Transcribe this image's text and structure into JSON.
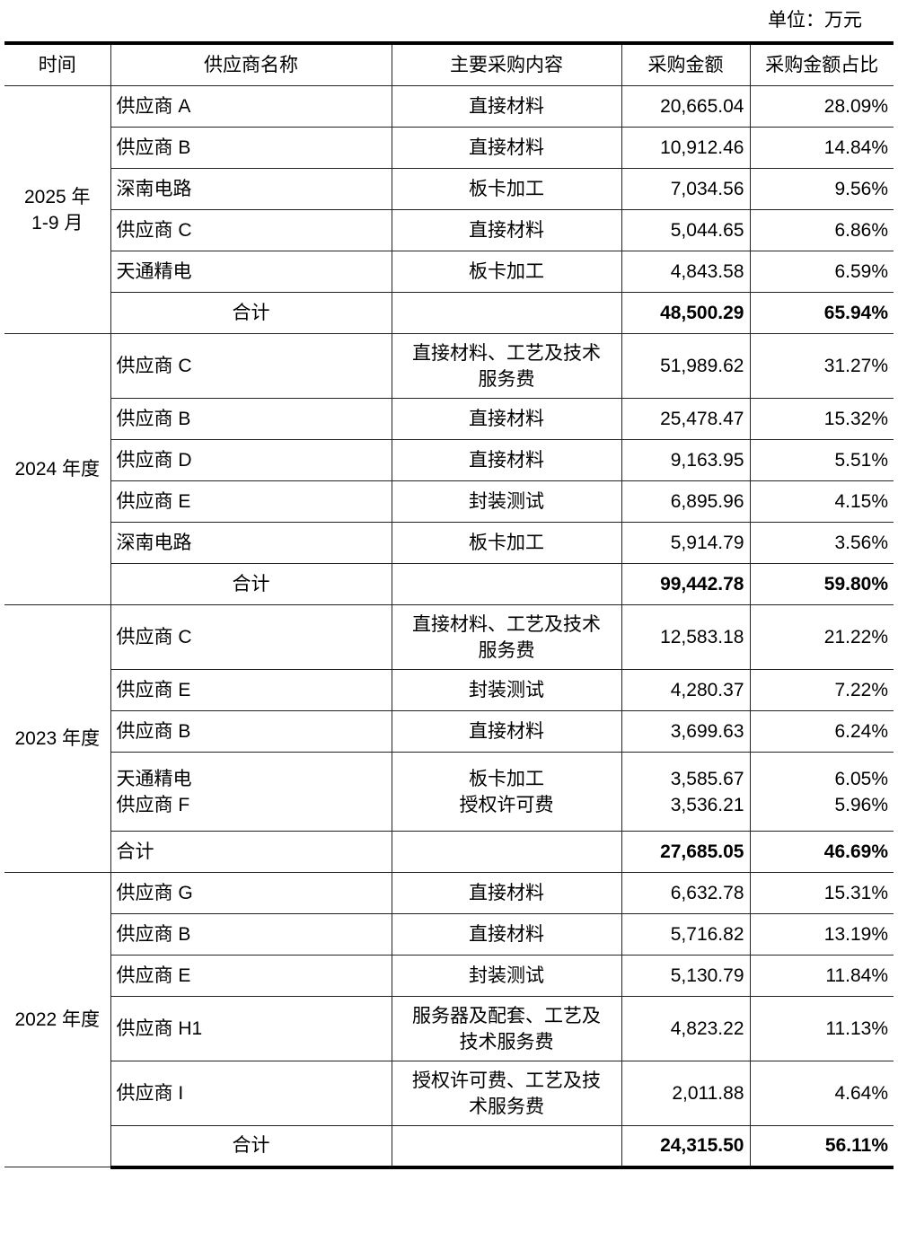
{
  "unit_label": "单位：万元",
  "headers": [
    "时间",
    "供应商名称",
    "主要采购内容",
    "采购金额",
    "采购金额占比"
  ],
  "groups": [
    {
      "period": "2025 年\n1-9 月",
      "rows": [
        {
          "lines": [
            {
              "supplier": "供应商 A",
              "content": "直接材料",
              "amount": "20,665.04",
              "share": "28.09%"
            }
          ]
        },
        {
          "lines": [
            {
              "supplier": "供应商 B",
              "content": "直接材料",
              "amount": "10,912.46",
              "share": "14.84%"
            }
          ]
        },
        {
          "lines": [
            {
              "supplier": "深南电路",
              "content": "板卡加工",
              "amount": "7,034.56",
              "share": "9.56%"
            }
          ]
        },
        {
          "lines": [
            {
              "supplier": "供应商 C",
              "content": "直接材料",
              "amount": "5,044.65",
              "share": "6.86%"
            }
          ]
        },
        {
          "lines": [
            {
              "supplier": "天通精电",
              "content": "板卡加工",
              "amount": "4,843.58",
              "share": "6.59%"
            }
          ]
        }
      ],
      "total": {
        "label": "合计",
        "amount": "48,500.29",
        "share": "65.94%",
        "align": "center"
      }
    },
    {
      "period": "2024 年度",
      "rows": [
        {
          "tall": true,
          "lines": [
            {
              "supplier": "供应商 C",
              "content": "直接材料、工艺及技术\n服务费",
              "amount": "51,989.62",
              "share": "31.27%"
            }
          ]
        },
        {
          "lines": [
            {
              "supplier": "供应商 B",
              "content": "直接材料",
              "amount": "25,478.47",
              "share": "15.32%"
            }
          ]
        },
        {
          "lines": [
            {
              "supplier": "供应商 D",
              "content": "直接材料",
              "amount": "9,163.95",
              "share": "5.51%"
            }
          ]
        },
        {
          "lines": [
            {
              "supplier": "供应商 E",
              "content": "封装测试",
              "amount": "6,895.96",
              "share": "4.15%"
            }
          ]
        },
        {
          "lines": [
            {
              "supplier": "深南电路",
              "content": "板卡加工",
              "amount": "5,914.79",
              "share": "3.56%"
            }
          ]
        }
      ],
      "total": {
        "label": "合计",
        "amount": "99,442.78",
        "share": "59.80%",
        "align": "center"
      }
    },
    {
      "period": "2023 年度",
      "rows": [
        {
          "tall": true,
          "lines": [
            {
              "supplier": "供应商 C",
              "content": "直接材料、工艺及技术\n服务费",
              "amount": "12,583.18",
              "share": "21.22%"
            }
          ]
        },
        {
          "lines": [
            {
              "supplier": "供应商 E",
              "content": "封装测试",
              "amount": "4,280.37",
              "share": "7.22%"
            }
          ]
        },
        {
          "lines": [
            {
              "supplier": "供应商 B",
              "content": "直接材料",
              "amount": "3,699.63",
              "share": "6.24%"
            }
          ]
        },
        {
          "lines": [
            {
              "supplier": "天通精电",
              "content": "板卡加工",
              "amount": "3,585.67",
              "share": "6.05%"
            },
            {
              "supplier": "供应商 F",
              "content": "授权许可费",
              "amount": "3,536.21",
              "share": "5.96%"
            }
          ]
        }
      ],
      "total": {
        "label": "合计",
        "amount": "27,685.05",
        "share": "46.69%",
        "align": "left"
      }
    },
    {
      "period": "2022 年度",
      "rows": [
        {
          "lines": [
            {
              "supplier": "供应商 G",
              "content": "直接材料",
              "amount": "6,632.78",
              "share": "15.31%"
            }
          ]
        },
        {
          "lines": [
            {
              "supplier": "供应商 B",
              "content": "直接材料",
              "amount": "5,716.82",
              "share": "13.19%"
            }
          ]
        },
        {
          "lines": [
            {
              "supplier": "供应商 E",
              "content": "封装测试",
              "amount": "5,130.79",
              "share": "11.84%"
            }
          ]
        },
        {
          "tall": true,
          "lines": [
            {
              "supplier": "供应商 H1",
              "content": "服务器及配套、工艺及\n技术服务费",
              "amount": "4,823.22",
              "share": "11.13%"
            }
          ]
        },
        {
          "tall": true,
          "lines": [
            {
              "supplier": "供应商 I",
              "content": "授权许可费、工艺及技\n术服务费",
              "amount": "2,011.88",
              "share": "4.64%"
            }
          ]
        }
      ],
      "total": {
        "label": "合计",
        "amount": "24,315.50",
        "share": "56.11%",
        "align": "center"
      }
    }
  ]
}
